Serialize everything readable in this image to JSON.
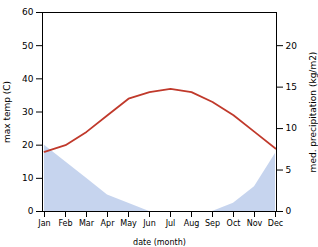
{
  "chart_data": {
    "type": "line",
    "categories": [
      "Jan",
      "Feb",
      "Mar",
      "Apr",
      "May",
      "Jun",
      "Jul",
      "Aug",
      "Sep",
      "Oct",
      "Nov",
      "Dec"
    ],
    "xlabel": "date (month)",
    "ylabel": "max temp (C)",
    "y2label": "med. precipitation (kg/m2)",
    "ylim": [
      0,
      60
    ],
    "yticks": [
      0,
      10,
      20,
      30,
      40,
      50,
      60
    ],
    "y2lim": [
      0,
      24
    ],
    "y2ticks": [
      0,
      5,
      10,
      15,
      20
    ],
    "series": [
      {
        "type": "area",
        "axis": "y2",
        "color": "#b3c6e8",
        "values": [
          8,
          6,
          4,
          2,
          1,
          0,
          0,
          0,
          0,
          1,
          3,
          7
        ]
      },
      {
        "type": "line",
        "color": "#c0392b",
        "values": [
          18,
          20,
          24,
          29,
          34,
          36,
          37,
          36,
          33,
          29,
          24,
          19
        ]
      }
    ]
  }
}
